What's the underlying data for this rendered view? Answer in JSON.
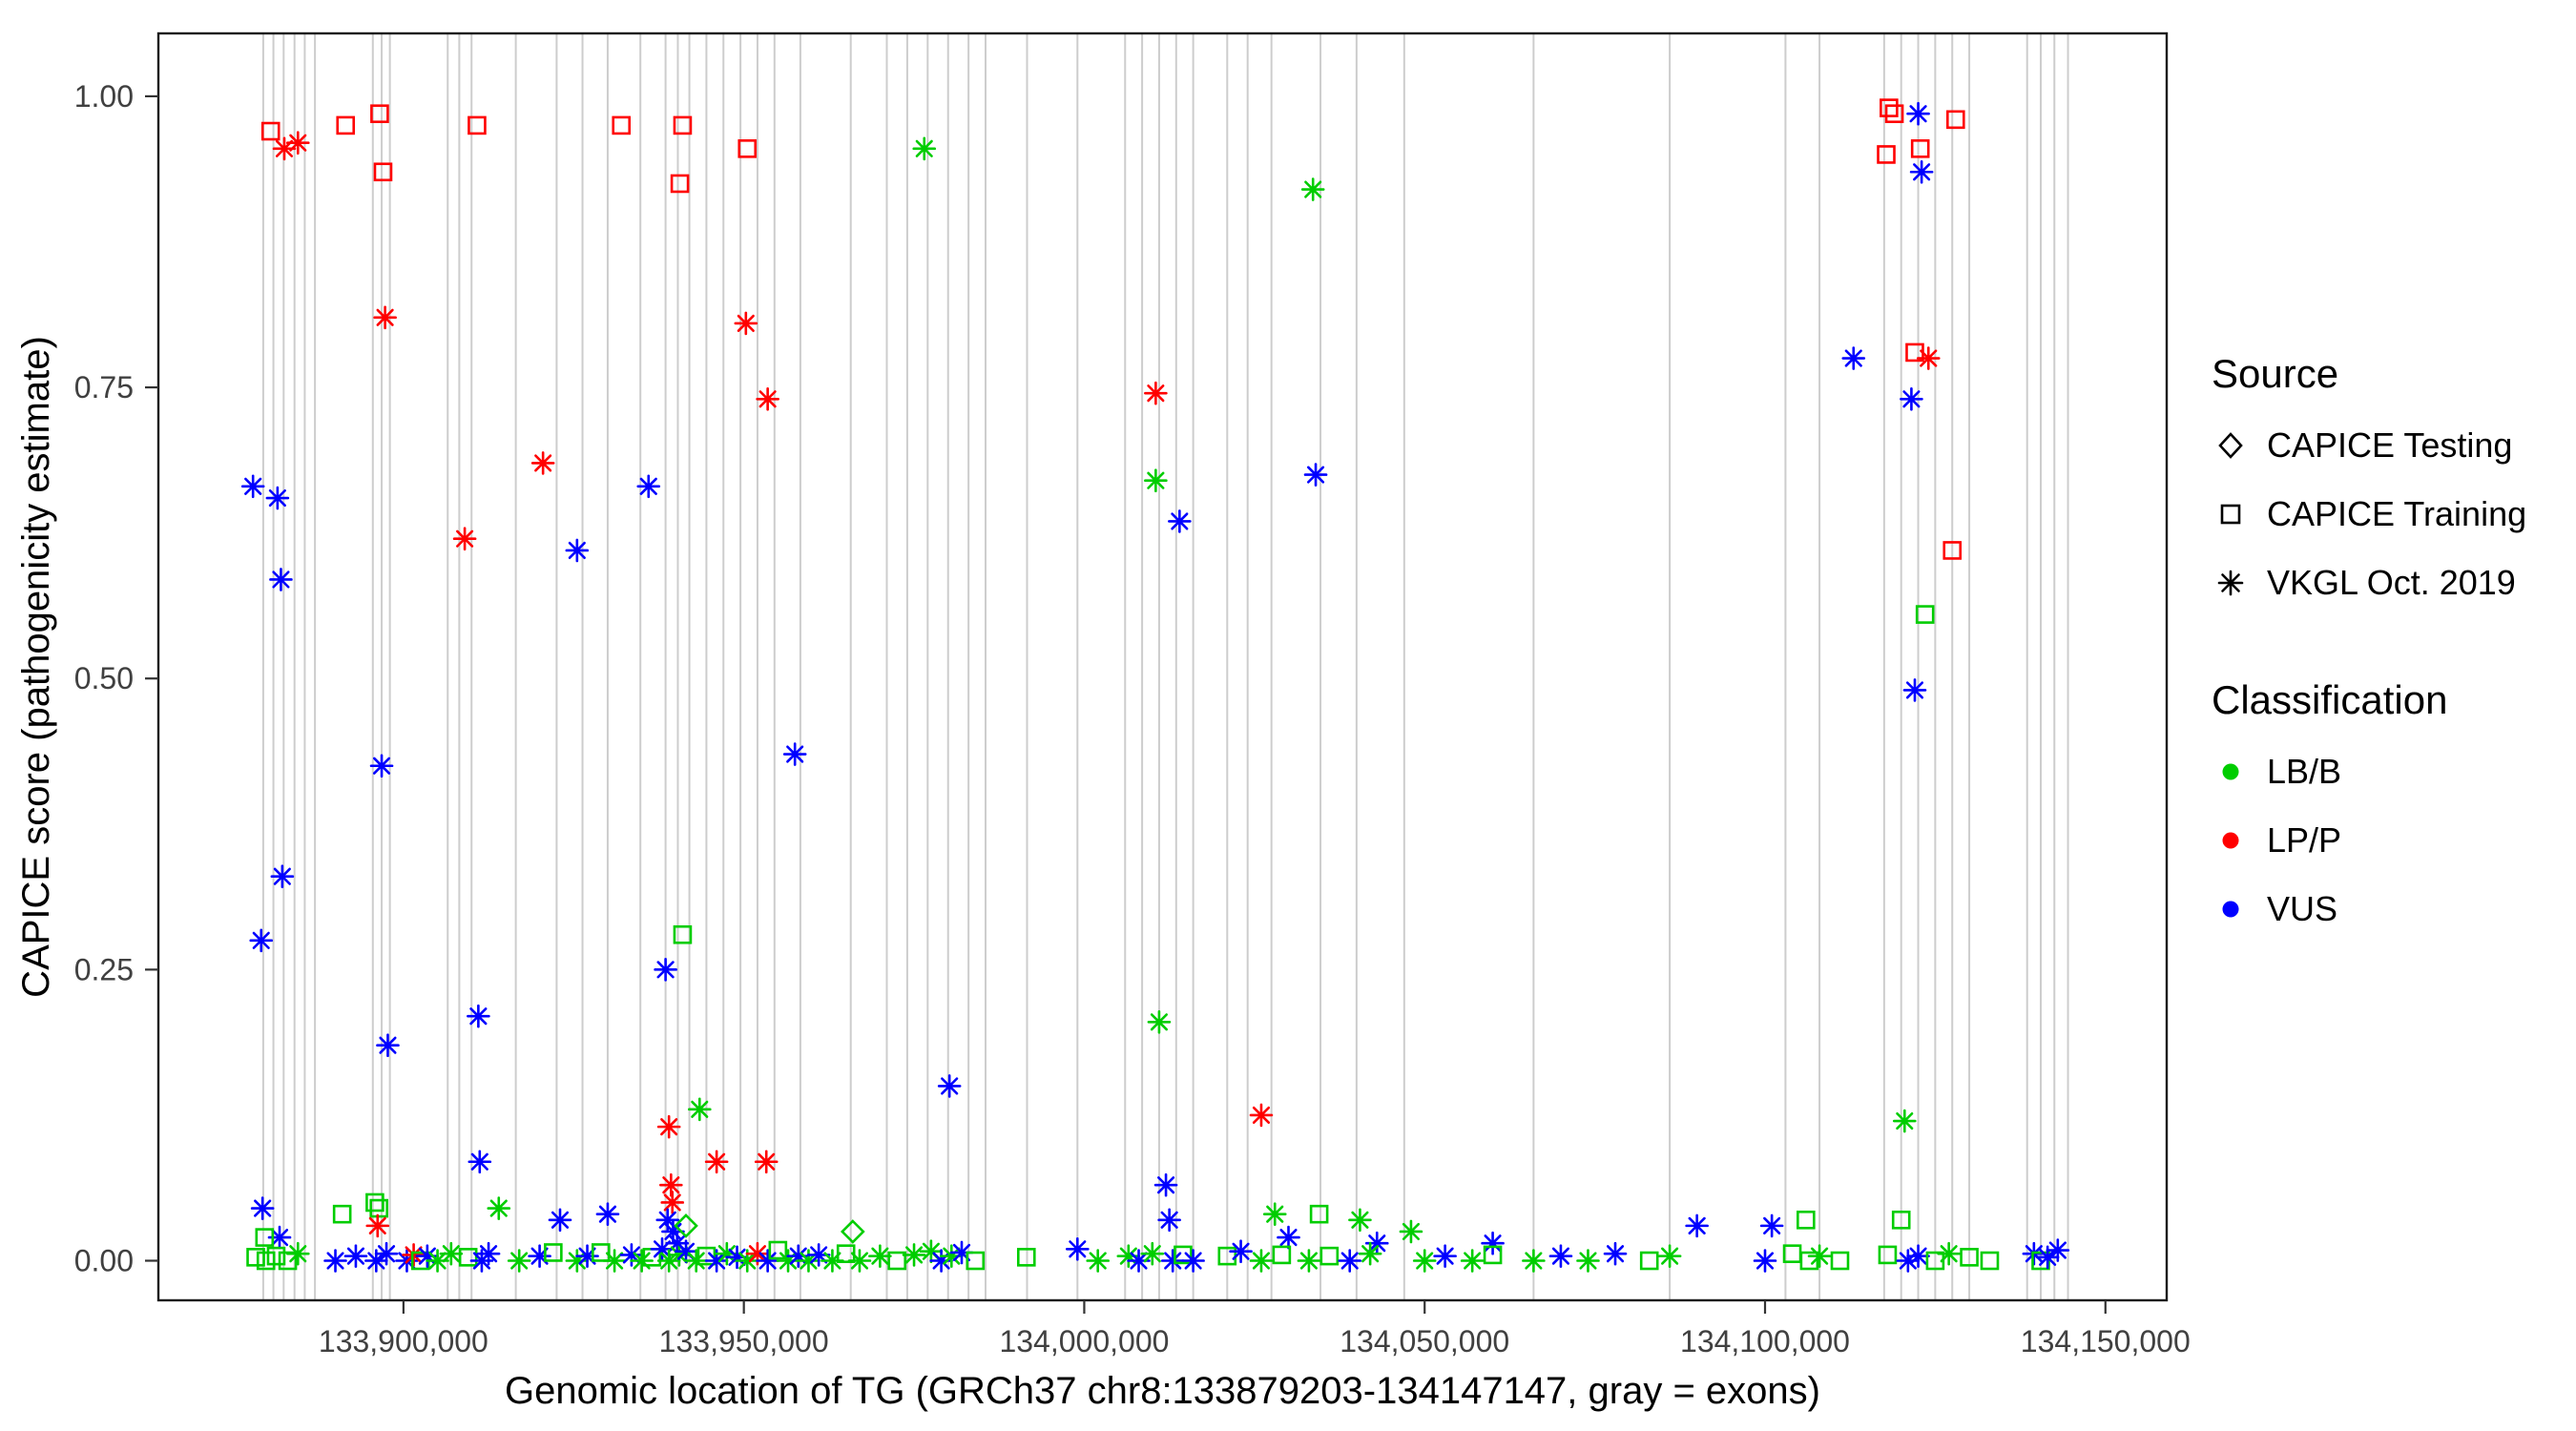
{
  "legend": {
    "source": {
      "title": "Source",
      "items": [
        {
          "label": "CAPICE Testing",
          "shape": "diamond"
        },
        {
          "label": "CAPICE Training",
          "shape": "square"
        },
        {
          "label": "VKGL Oct. 2019",
          "shape": "asterisk"
        }
      ]
    },
    "classification": {
      "title": "Classification",
      "items": [
        {
          "label": "LB/B",
          "color": "#00CD00"
        },
        {
          "label": "LP/P",
          "color": "#FF0000"
        },
        {
          "label": "VUS",
          "color": "#0000FF"
        }
      ]
    }
  },
  "chart_data": {
    "type": "scatter",
    "title": "",
    "xlabel": "Genomic location of TG (GRCh37 chr8:133879203-134147147, gray = exons)",
    "ylabel": "CAPICE score (pathogenicity estimate)",
    "xlim": [
      133864000,
      134159000
    ],
    "ylim": [
      -0.034,
      1.054
    ],
    "grid": false,
    "legend_position": "right",
    "x_ticks": [
      {
        "value": 133900000,
        "label": "133,900,000"
      },
      {
        "value": 133950000,
        "label": "133,950,000"
      },
      {
        "value": 134000000,
        "label": "134,000,000"
      },
      {
        "value": 134050000,
        "label": "134,050,000"
      },
      {
        "value": 134100000,
        "label": "134,100,000"
      },
      {
        "value": 134150000,
        "label": "134,150,000"
      }
    ],
    "y_ticks": [
      {
        "value": 0.0,
        "label": "0.00"
      },
      {
        "value": 0.25,
        "label": "0.25"
      },
      {
        "value": 0.5,
        "label": "0.50"
      },
      {
        "value": 0.75,
        "label": "0.75"
      },
      {
        "value": 1.0,
        "label": "1.00"
      }
    ],
    "colors": {
      "LB/B": "#00CD00",
      "LP/P": "#FF0000",
      "VUS": "#0000FF",
      "exon": "#CDCDCD"
    },
    "shapes": {
      "testing": "diamond",
      "training": "square",
      "vkgl": "asterisk"
    },
    "source_names": {
      "testing": "CAPICE Testing",
      "training": "CAPICE Training",
      "vkgl": "VKGL Oct. 2019"
    },
    "exons": [
      133879400,
      133880900,
      133882400,
      133884000,
      133885500,
      133887000,
      133895500,
      133896800,
      133898000,
      133906500,
      133908200,
      133910000,
      133916500,
      133922500,
      133926300,
      133930000,
      133934800,
      133938500,
      133940300,
      133942000,
      133944500,
      133947000,
      133949500,
      133952000,
      133954500,
      133958300,
      133965700,
      133971000,
      133974000,
      133977000,
      133980000,
      133983000,
      133985500,
      133991600,
      133999000,
      134006000,
      134008500,
      134011000,
      134013500,
      134016000,
      134021000,
      134024000,
      134027500,
      134034700,
      134040000,
      134047000,
      134066000,
      134086000,
      134103000,
      134108000,
      134117500,
      134120000,
      134122500,
      134125000,
      134127500,
      134130000,
      134138500,
      134140500,
      134142500,
      134144500
    ],
    "points_format": [
      "x_genomic_position",
      "y_capice_score",
      "source(testing|training|vkgl)",
      "classification"
    ],
    "points": [
      [
        133880500,
        0.97,
        "training",
        "LP/P"
      ],
      [
        133882500,
        0.955,
        "vkgl",
        "LP/P"
      ],
      [
        133884500,
        0.96,
        "vkgl",
        "LP/P"
      ],
      [
        133891500,
        0.975,
        "training",
        "LP/P"
      ],
      [
        133896500,
        0.985,
        "training",
        "LP/P"
      ],
      [
        133897000,
        0.935,
        "training",
        "LP/P"
      ],
      [
        133897300,
        0.81,
        "vkgl",
        "LP/P"
      ],
      [
        133910800,
        0.975,
        "training",
        "LP/P"
      ],
      [
        133909000,
        0.62,
        "vkgl",
        "LP/P"
      ],
      [
        133920500,
        0.685,
        "vkgl",
        "LP/P"
      ],
      [
        133932000,
        0.975,
        "training",
        "LP/P"
      ],
      [
        133941000,
        0.975,
        "training",
        "LP/P"
      ],
      [
        133940600,
        0.925,
        "training",
        "LP/P"
      ],
      [
        133950500,
        0.955,
        "training",
        "LP/P"
      ],
      [
        133950300,
        0.805,
        "vkgl",
        "LP/P"
      ],
      [
        133953500,
        0.74,
        "vkgl",
        "LP/P"
      ],
      [
        133976500,
        0.955,
        "vkgl",
        "LB/B"
      ],
      [
        134033600,
        0.92,
        "vkgl",
        "LB/B"
      ],
      [
        134010500,
        0.745,
        "vkgl",
        "LP/P"
      ],
      [
        134010500,
        0.67,
        "vkgl",
        "LB/B"
      ],
      [
        134014000,
        0.635,
        "vkgl",
        "VUS"
      ],
      [
        134034000,
        0.675,
        "vkgl",
        "VUS"
      ],
      [
        133877900,
        0.665,
        "vkgl",
        "VUS"
      ],
      [
        133881500,
        0.655,
        "vkgl",
        "VUS"
      ],
      [
        133882000,
        0.585,
        "vkgl",
        "VUS"
      ],
      [
        133896800,
        0.425,
        "vkgl",
        "VUS"
      ],
      [
        133882200,
        0.33,
        "vkgl",
        "VUS"
      ],
      [
        133879100,
        0.275,
        "vkgl",
        "VUS"
      ],
      [
        133897700,
        0.185,
        "vkgl",
        "VUS"
      ],
      [
        133911000,
        0.21,
        "vkgl",
        "VUS"
      ],
      [
        133911200,
        0.085,
        "vkgl",
        "VUS"
      ],
      [
        133925500,
        0.61,
        "vkgl",
        "VUS"
      ],
      [
        133936000,
        0.665,
        "vkgl",
        "VUS"
      ],
      [
        133938500,
        0.25,
        "vkgl",
        "VUS"
      ],
      [
        133957500,
        0.435,
        "vkgl",
        "VUS"
      ],
      [
        133980200,
        0.15,
        "vkgl",
        "VUS"
      ],
      [
        134113000,
        0.775,
        "vkgl",
        "VUS"
      ],
      [
        134118200,
        0.99,
        "training",
        "LP/P"
      ],
      [
        134119000,
        0.985,
        "training",
        "LP/P"
      ],
      [
        134117800,
        0.95,
        "training",
        "LP/P"
      ],
      [
        134122500,
        0.985,
        "vkgl",
        "VUS"
      ],
      [
        134122800,
        0.955,
        "training",
        "LP/P"
      ],
      [
        134123000,
        0.935,
        "vkgl",
        "VUS"
      ],
      [
        134128000,
        0.98,
        "training",
        "LP/P"
      ],
      [
        134122000,
        0.78,
        "training",
        "LP/P"
      ],
      [
        134124000,
        0.775,
        "vkgl",
        "LP/P"
      ],
      [
        134121500,
        0.74,
        "vkgl",
        "VUS"
      ],
      [
        134123500,
        0.555,
        "training",
        "LB/B"
      ],
      [
        134122000,
        0.49,
        "vkgl",
        "VUS"
      ],
      [
        134127500,
        0.61,
        "training",
        "LP/P"
      ],
      [
        134120500,
        0.12,
        "vkgl",
        "LB/B"
      ],
      [
        134026000,
        0.125,
        "vkgl",
        "LP/P"
      ],
      [
        134011000,
        0.205,
        "vkgl",
        "LB/B"
      ],
      [
        134012000,
        0.065,
        "vkgl",
        "VUS"
      ],
      [
        133941000,
        0.28,
        "training",
        "LB/B"
      ],
      [
        133943500,
        0.13,
        "vkgl",
        "LB/B"
      ],
      [
        133939000,
        0.115,
        "vkgl",
        "LP/P"
      ],
      [
        133939300,
        0.065,
        "vkgl",
        "LP/P"
      ],
      [
        133939500,
        0.05,
        "vkgl",
        "LP/P"
      ],
      [
        133946000,
        0.085,
        "vkgl",
        "LP/P"
      ],
      [
        133953300,
        0.085,
        "vkgl",
        "LP/P"
      ],
      [
        133879300,
        0.045,
        "vkgl",
        "VUS"
      ],
      [
        133881800,
        0.02,
        "vkgl",
        "VUS"
      ],
      [
        133879600,
        0.02,
        "training",
        "LB/B"
      ],
      [
        133891000,
        0.04,
        "training",
        "LB/B"
      ],
      [
        133895800,
        0.05,
        "training",
        "LB/B"
      ],
      [
        133896400,
        0.045,
        "training",
        "LB/B"
      ],
      [
        133896200,
        0.03,
        "vkgl",
        "LP/P"
      ],
      [
        133914000,
        0.045,
        "vkgl",
        "LB/B"
      ],
      [
        133923000,
        0.035,
        "vkgl",
        "VUS"
      ],
      [
        133930000,
        0.04,
        "vkgl",
        "VUS"
      ],
      [
        133938800,
        0.035,
        "vkgl",
        "VUS"
      ],
      [
        133939600,
        0.025,
        "vkgl",
        "VUS"
      ],
      [
        133940200,
        0.015,
        "vkgl",
        "VUS"
      ],
      [
        133941500,
        0.03,
        "testing",
        "LB/B"
      ],
      [
        133966000,
        0.025,
        "testing",
        "LB/B"
      ],
      [
        134012500,
        0.035,
        "vkgl",
        "VUS"
      ],
      [
        134030000,
        0.02,
        "vkgl",
        "VUS"
      ],
      [
        134028000,
        0.04,
        "vkgl",
        "LB/B"
      ],
      [
        134034500,
        0.04,
        "training",
        "LB/B"
      ],
      [
        134043000,
        0.015,
        "vkgl",
        "VUS"
      ],
      [
        134040500,
        0.035,
        "vkgl",
        "LB/B"
      ],
      [
        134048000,
        0.025,
        "vkgl",
        "LB/B"
      ],
      [
        134060000,
        0.015,
        "vkgl",
        "VUS"
      ],
      [
        134090000,
        0.03,
        "vkgl",
        "VUS"
      ],
      [
        134101000,
        0.03,
        "vkgl",
        "VUS"
      ],
      [
        134106000,
        0.035,
        "training",
        "LB/B"
      ],
      [
        134120000,
        0.035,
        "training",
        "LB/B"
      ],
      [
        133878300,
        0.003,
        "training",
        "LB/B"
      ],
      [
        133879800,
        0,
        "training",
        "LB/B"
      ],
      [
        133881300,
        0.004,
        "training",
        "LB/B"
      ],
      [
        133883000,
        0,
        "training",
        "LB/B"
      ],
      [
        133884500,
        0.006,
        "vkgl",
        "LB/B"
      ],
      [
        133890000,
        0,
        "vkgl",
        "VUS"
      ],
      [
        133893000,
        0.004,
        "vkgl",
        "VUS"
      ],
      [
        133896000,
        0,
        "vkgl",
        "VUS"
      ],
      [
        133897500,
        0.006,
        "vkgl",
        "VUS"
      ],
      [
        133900500,
        0,
        "vkgl",
        "VUS"
      ],
      [
        133901500,
        0.005,
        "vkgl",
        "LP/P"
      ],
      [
        133902500,
        0,
        "training",
        "LB/B"
      ],
      [
        133903500,
        0.004,
        "vkgl",
        "VUS"
      ],
      [
        133905000,
        0,
        "vkgl",
        "LB/B"
      ],
      [
        133907000,
        0.006,
        "vkgl",
        "LB/B"
      ],
      [
        133909500,
        0.003,
        "training",
        "LB/B"
      ],
      [
        133911500,
        0,
        "vkgl",
        "VUS"
      ],
      [
        133912500,
        0.006,
        "vkgl",
        "VUS"
      ],
      [
        133917000,
        0,
        "vkgl",
        "LB/B"
      ],
      [
        133920000,
        0.004,
        "vkgl",
        "VUS"
      ],
      [
        133922000,
        0.007,
        "training",
        "LB/B"
      ],
      [
        133925500,
        0,
        "vkgl",
        "LB/B"
      ],
      [
        133927000,
        0.004,
        "vkgl",
        "VUS"
      ],
      [
        133929000,
        0.007,
        "training",
        "LB/B"
      ],
      [
        133931000,
        0,
        "vkgl",
        "LB/B"
      ],
      [
        133933500,
        0.005,
        "vkgl",
        "VUS"
      ],
      [
        133935000,
        0,
        "vkgl",
        "LB/B"
      ],
      [
        133936500,
        0.003,
        "training",
        "LB/B"
      ],
      [
        133938000,
        0.01,
        "vkgl",
        "VUS"
      ],
      [
        133939000,
        0,
        "vkgl",
        "LB/B"
      ],
      [
        133940500,
        0.005,
        "vkgl",
        "LB/B"
      ],
      [
        133941500,
        0.008,
        "vkgl",
        "VUS"
      ],
      [
        133943000,
        0,
        "vkgl",
        "LB/B"
      ],
      [
        133944500,
        0.004,
        "training",
        "LB/B"
      ],
      [
        133946000,
        0,
        "vkgl",
        "VUS"
      ],
      [
        133947500,
        0.006,
        "vkgl",
        "LB/B"
      ],
      [
        133949000,
        0.003,
        "vkgl",
        "VUS"
      ],
      [
        133950500,
        0,
        "vkgl",
        "LB/B"
      ],
      [
        133952000,
        0.006,
        "vkgl",
        "LP/P"
      ],
      [
        133953500,
        0,
        "vkgl",
        "VUS"
      ],
      [
        133955000,
        0.009,
        "training",
        "LB/B"
      ],
      [
        133956500,
        0,
        "vkgl",
        "LB/B"
      ],
      [
        133958000,
        0.004,
        "vkgl",
        "VUS"
      ],
      [
        133959500,
        0,
        "vkgl",
        "LB/B"
      ],
      [
        133961000,
        0.005,
        "vkgl",
        "VUS"
      ],
      [
        133963000,
        0,
        "vkgl",
        "LB/B"
      ],
      [
        133965000,
        0.006,
        "training",
        "LB/B"
      ],
      [
        133967000,
        0,
        "vkgl",
        "LB/B"
      ],
      [
        133970000,
        0.004,
        "vkgl",
        "LB/B"
      ],
      [
        133972500,
        0,
        "training",
        "LB/B"
      ],
      [
        133975000,
        0.005,
        "vkgl",
        "LB/B"
      ],
      [
        133977500,
        0.008,
        "vkgl",
        "LB/B"
      ],
      [
        133979000,
        0,
        "vkgl",
        "VUS"
      ],
      [
        133980500,
        0.004,
        "vkgl",
        "LB/B"
      ],
      [
        133982000,
        0.007,
        "vkgl",
        "VUS"
      ],
      [
        133984000,
        0,
        "training",
        "LB/B"
      ],
      [
        133991500,
        0.003,
        "training",
        "LB/B"
      ],
      [
        133999000,
        0.01,
        "vkgl",
        "VUS"
      ],
      [
        134002000,
        0,
        "vkgl",
        "LB/B"
      ],
      [
        134006500,
        0.004,
        "vkgl",
        "LB/B"
      ],
      [
        134008000,
        0,
        "vkgl",
        "VUS"
      ],
      [
        134010000,
        0.006,
        "vkgl",
        "LB/B"
      ],
      [
        134013000,
        0,
        "vkgl",
        "VUS"
      ],
      [
        134014500,
        0.005,
        "training",
        "LB/B"
      ],
      [
        134016000,
        0,
        "vkgl",
        "VUS"
      ],
      [
        134021000,
        0.004,
        "training",
        "LB/B"
      ],
      [
        134023000,
        0.008,
        "vkgl",
        "VUS"
      ],
      [
        134026000,
        0,
        "vkgl",
        "LB/B"
      ],
      [
        134029000,
        0.005,
        "training",
        "LB/B"
      ],
      [
        134033000,
        0,
        "vkgl",
        "LB/B"
      ],
      [
        134036000,
        0.004,
        "training",
        "LB/B"
      ],
      [
        134039000,
        0,
        "vkgl",
        "VUS"
      ],
      [
        134042000,
        0.006,
        "vkgl",
        "LB/B"
      ],
      [
        134050000,
        0,
        "vkgl",
        "LB/B"
      ],
      [
        134053000,
        0.004,
        "vkgl",
        "VUS"
      ],
      [
        134057000,
        0,
        "vkgl",
        "LB/B"
      ],
      [
        134060000,
        0.005,
        "training",
        "LB/B"
      ],
      [
        134066000,
        0,
        "vkgl",
        "LB/B"
      ],
      [
        134070000,
        0.004,
        "vkgl",
        "VUS"
      ],
      [
        134074000,
        0,
        "vkgl",
        "LB/B"
      ],
      [
        134078000,
        0.006,
        "vkgl",
        "VUS"
      ],
      [
        134083000,
        0,
        "training",
        "LB/B"
      ],
      [
        134086000,
        0.004,
        "vkgl",
        "LB/B"
      ],
      [
        134100000,
        0,
        "vkgl",
        "VUS"
      ],
      [
        134104000,
        0.006,
        "training",
        "LB/B"
      ],
      [
        134106500,
        0,
        "training",
        "LB/B"
      ],
      [
        134108000,
        0.004,
        "vkgl",
        "LB/B"
      ],
      [
        134111000,
        0,
        "training",
        "LB/B"
      ],
      [
        134118000,
        0.005,
        "training",
        "LB/B"
      ],
      [
        134121000,
        0,
        "vkgl",
        "VUS"
      ],
      [
        134122500,
        0.004,
        "vkgl",
        "VUS"
      ],
      [
        134125000,
        0,
        "training",
        "LB/B"
      ],
      [
        134127000,
        0.006,
        "vkgl",
        "LB/B"
      ],
      [
        134130000,
        0.003,
        "training",
        "LB/B"
      ],
      [
        134133000,
        0,
        "training",
        "LB/B"
      ],
      [
        134139500,
        0.006,
        "vkgl",
        "VUS"
      ],
      [
        134140500,
        0,
        "training",
        "LB/B"
      ],
      [
        134141500,
        0.003,
        "vkgl",
        "VUS"
      ],
      [
        134143000,
        0.009,
        "vkgl",
        "VUS"
      ]
    ]
  }
}
